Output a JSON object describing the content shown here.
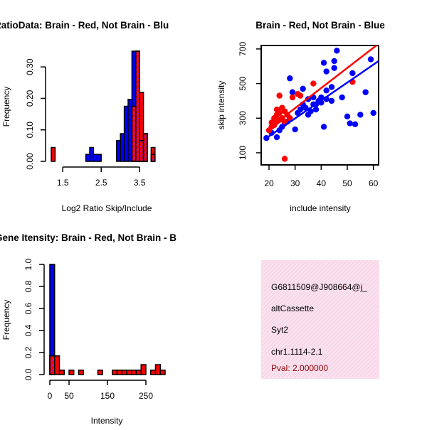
{
  "colors": {
    "brain": "#ff0000",
    "not_brain": "#0000ff",
    "overlap": "#a020f0",
    "info_bg": "#f8d9ea",
    "pval": "#8b0000"
  },
  "info": {
    "probe": "G6811509@J908664@j_",
    "event_type": "altCassette",
    "gene": "Syt2",
    "location": "chr1.1114-2.1",
    "pval": "Pval: 2.000000"
  },
  "chart_data": [
    {
      "id": "ratio-hist",
      "type": "bar",
      "title": "RatioData: Brain - Red, Not Brain - Blu",
      "xlabel": "Log2 Ratio Skip/Include",
      "ylabel": "Frequency",
      "xlim": [
        1.2,
        4.2
      ],
      "ylim": [
        0,
        0.35
      ],
      "bin_width": 0.1,
      "xticks": [
        1.5,
        2.5,
        3.5
      ],
      "xtick_labels": [
        "1.5",
        "2.5",
        "3.5"
      ],
      "yticks": [
        0.0,
        0.1,
        0.2,
        0.3
      ],
      "ytick_labels": [
        "0.00",
        "0.10",
        "0.20",
        "0.30"
      ],
      "series": [
        {
          "name": "Not Brain",
          "color": "blue",
          "bins": [
            {
              "x0": 2.1,
              "v": 0.022
            },
            {
              "x0": 2.2,
              "v": 0.044
            },
            {
              "x0": 2.3,
              "v": 0.022
            },
            {
              "x0": 2.4,
              "v": 0.022
            },
            {
              "x0": 2.9,
              "v": 0.066
            },
            {
              "x0": 3.0,
              "v": 0.088
            },
            {
              "x0": 3.1,
              "v": 0.175
            },
            {
              "x0": 3.2,
              "v": 0.197
            },
            {
              "x0": 3.3,
              "v": 0.35
            },
            {
              "x0": 3.4,
              "v": 0.35
            },
            {
              "x0": 3.5,
              "v": 0.066
            },
            {
              "x0": 3.6,
              "v": 0.088
            },
            {
              "x0": 3.8,
              "v": 0.022
            }
          ]
        },
        {
          "name": "Brain",
          "color": "red",
          "bins": [
            {
              "x0": 1.2,
              "v": 0.044
            },
            {
              "x0": 3.3,
              "v": 0.175
            },
            {
              "x0": 3.4,
              "v": 0.35
            },
            {
              "x0": 3.5,
              "v": 0.219
            },
            {
              "x0": 3.6,
              "v": 0.088
            },
            {
              "x0": 3.8,
              "v": 0.044
            }
          ]
        }
      ]
    },
    {
      "id": "scatter",
      "type": "scatter",
      "title": "Brain - Red, Not Brain - Blue",
      "xlabel": "include intensity",
      "ylabel": "skip intensity",
      "xlim": [
        17,
        62
      ],
      "ylim": [
        30,
        720
      ],
      "xticks": [
        20,
        30,
        40,
        50,
        60
      ],
      "xtick_labels": [
        "20",
        "30",
        "40",
        "50",
        "60"
      ],
      "yticks": [
        100,
        300,
        500,
        700
      ],
      "ytick_labels": [
        "100",
        "300",
        "500",
        "700"
      ],
      "series": [
        {
          "name": "Brain",
          "color": "red",
          "points": [
            [
              20,
              230
            ],
            [
              21,
              250
            ],
            [
              21,
              275
            ],
            [
              22,
              260
            ],
            [
              22,
              300
            ],
            [
              23,
              280
            ],
            [
              23,
              320
            ],
            [
              23,
              350
            ],
            [
              24,
              290
            ],
            [
              24,
              330
            ],
            [
              24,
              430
            ],
            [
              25,
              300
            ],
            [
              25,
              360
            ],
            [
              26,
              280
            ],
            [
              26,
              340
            ],
            [
              27,
              320
            ],
            [
              28,
              300
            ],
            [
              29,
              420
            ],
            [
              31,
              440
            ],
            [
              32,
              430
            ],
            [
              37,
              500
            ],
            [
              52,
              510
            ],
            [
              26,
              65
            ]
          ]
        },
        {
          "name": "Not Brain",
          "color": "blue",
          "points": [
            [
              19,
              185
            ],
            [
              21,
              215
            ],
            [
              23,
              190
            ],
            [
              24,
              230
            ],
            [
              25,
              250
            ],
            [
              26,
              270
            ],
            [
              27,
              280
            ],
            [
              28,
              530
            ],
            [
              29,
              450
            ],
            [
              30,
              235
            ],
            [
              31,
              330
            ],
            [
              32,
              350
            ],
            [
              33,
              380
            ],
            [
              33,
              470
            ],
            [
              34,
              360
            ],
            [
              35,
              320
            ],
            [
              35,
              410
            ],
            [
              36,
              340
            ],
            [
              37,
              380
            ],
            [
              37,
              420
            ],
            [
              38,
              350
            ],
            [
              38,
              380
            ],
            [
              39,
              400
            ],
            [
              40,
              390
            ],
            [
              40,
              420
            ],
            [
              41,
              250
            ],
            [
              41,
              620
            ],
            [
              42,
              410
            ],
            [
              42,
              460
            ],
            [
              42,
              570
            ],
            [
              44,
              400
            ],
            [
              44,
              480
            ],
            [
              45,
              590
            ],
            [
              45,
              630
            ],
            [
              46,
              690
            ],
            [
              50,
              310
            ],
            [
              51,
              270
            ],
            [
              52,
              560
            ],
            [
              53,
              265
            ],
            [
              55,
              320
            ],
            [
              57,
              450
            ],
            [
              59,
              640
            ],
            [
              60,
              330
            ],
            [
              48,
              420
            ]
          ]
        }
      ],
      "fit_lines": [
        {
          "name": "Brain fit",
          "color": "red",
          "x": [
            19,
            62
          ],
          "y": [
            230,
            730
          ]
        },
        {
          "name": "Not Brain fit",
          "color": "blue",
          "x": [
            19,
            62
          ],
          "y": [
            185,
            630
          ]
        }
      ]
    },
    {
      "id": "intensity-hist",
      "type": "bar",
      "title": "Gene Itensity: Brain - Red, Not Brain - B",
      "xlabel": "Intensity",
      "ylabel": "Frequency",
      "xlim": [
        0,
        300
      ],
      "ylim": [
        0,
        1.0
      ],
      "bin_width": 12.5,
      "xticks": [
        0,
        50,
        150,
        250
      ],
      "xtick_labels": [
        "0",
        "50",
        "150",
        "250"
      ],
      "yticks": [
        0.0,
        0.2,
        0.4,
        0.6,
        0.8,
        1.0
      ],
      "ytick_labels": [
        "0.0",
        "0.2",
        "0.4",
        "0.6",
        "0.8",
        "1.0"
      ],
      "series": [
        {
          "name": "Not Brain",
          "color": "blue",
          "bins": [
            {
              "x0": 0,
              "v": 1.0
            }
          ]
        },
        {
          "name": "Brain",
          "color": "red",
          "bins": [
            {
              "x0": 0,
              "v": 0.17
            },
            {
              "x0": 12.5,
              "v": 0.17
            },
            {
              "x0": 25,
              "v": 0.04
            },
            {
              "x0": 50,
              "v": 0.04
            },
            {
              "x0": 75,
              "v": 0.04
            },
            {
              "x0": 125,
              "v": 0.04
            },
            {
              "x0": 162.5,
              "v": 0.04
            },
            {
              "x0": 175,
              "v": 0.04
            },
            {
              "x0": 187.5,
              "v": 0.04
            },
            {
              "x0": 200,
              "v": 0.04
            },
            {
              "x0": 212.5,
              "v": 0.04
            },
            {
              "x0": 225,
              "v": 0.04
            },
            {
              "x0": 237.5,
              "v": 0.09
            },
            {
              "x0": 262.5,
              "v": 0.04
            },
            {
              "x0": 275,
              "v": 0.09
            },
            {
              "x0": 287.5,
              "v": 0.04
            }
          ]
        }
      ]
    }
  ]
}
